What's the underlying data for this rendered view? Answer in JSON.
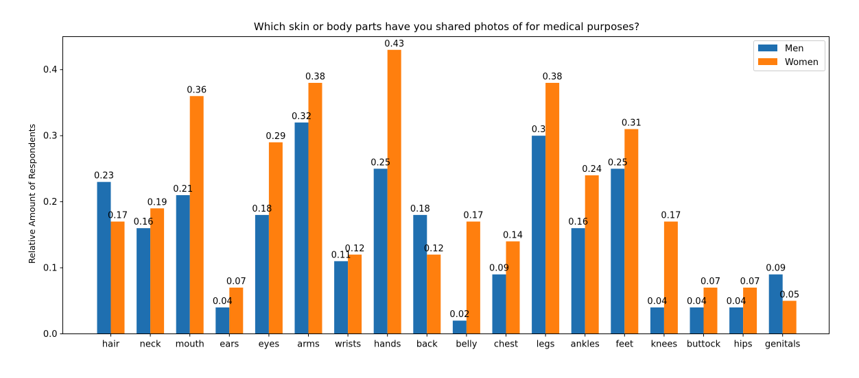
{
  "chart_data": {
    "type": "bar",
    "title": "Which skin or body parts have you shared photos of for medical purposes?",
    "xlabel": "",
    "ylabel": "Relative Amount of Respondents",
    "ylim": [
      0,
      0.45
    ],
    "yticks": [
      "0.0",
      "0.1",
      "0.2",
      "0.3",
      "0.4"
    ],
    "grid": false,
    "legend_position": "top-right",
    "categories": [
      "hair",
      "neck",
      "mouth",
      "ears",
      "eyes",
      "arms",
      "wrists",
      "hands",
      "back",
      "belly",
      "chest",
      "legs",
      "ankles",
      "feet",
      "knees",
      "buttock",
      "hips",
      "genitals"
    ],
    "series": [
      {
        "name": "Men",
        "color": "#1f6fb0",
        "values": [
          0.23,
          0.16,
          0.21,
          0.04,
          0.18,
          0.32,
          0.11,
          0.25,
          0.18,
          0.02,
          0.09,
          0.3,
          0.16,
          0.25,
          0.04,
          0.04,
          0.04,
          0.09
        ],
        "labels": [
          "0.23",
          "0.16",
          "0.21",
          "0.04",
          "0.18",
          "0.32",
          "0.11",
          "0.25",
          "0.18",
          "0.02",
          "0.09",
          "0.3",
          "0.16",
          "0.25",
          "0.04",
          "0.04",
          "0.04",
          "0.09"
        ]
      },
      {
        "name": "Women",
        "color": "#ff7f0e",
        "values": [
          0.17,
          0.19,
          0.36,
          0.07,
          0.29,
          0.38,
          0.12,
          0.43,
          0.12,
          0.17,
          0.14,
          0.38,
          0.24,
          0.31,
          0.17,
          0.07,
          0.07,
          0.05
        ],
        "labels": [
          "0.17",
          "0.19",
          "0.36",
          "0.07",
          "0.29",
          "0.38",
          "0.12",
          "0.43",
          "0.12",
          "0.17",
          "0.14",
          "0.38",
          "0.24",
          "0.31",
          "0.17",
          "0.07",
          "0.07",
          "0.05"
        ]
      }
    ]
  }
}
